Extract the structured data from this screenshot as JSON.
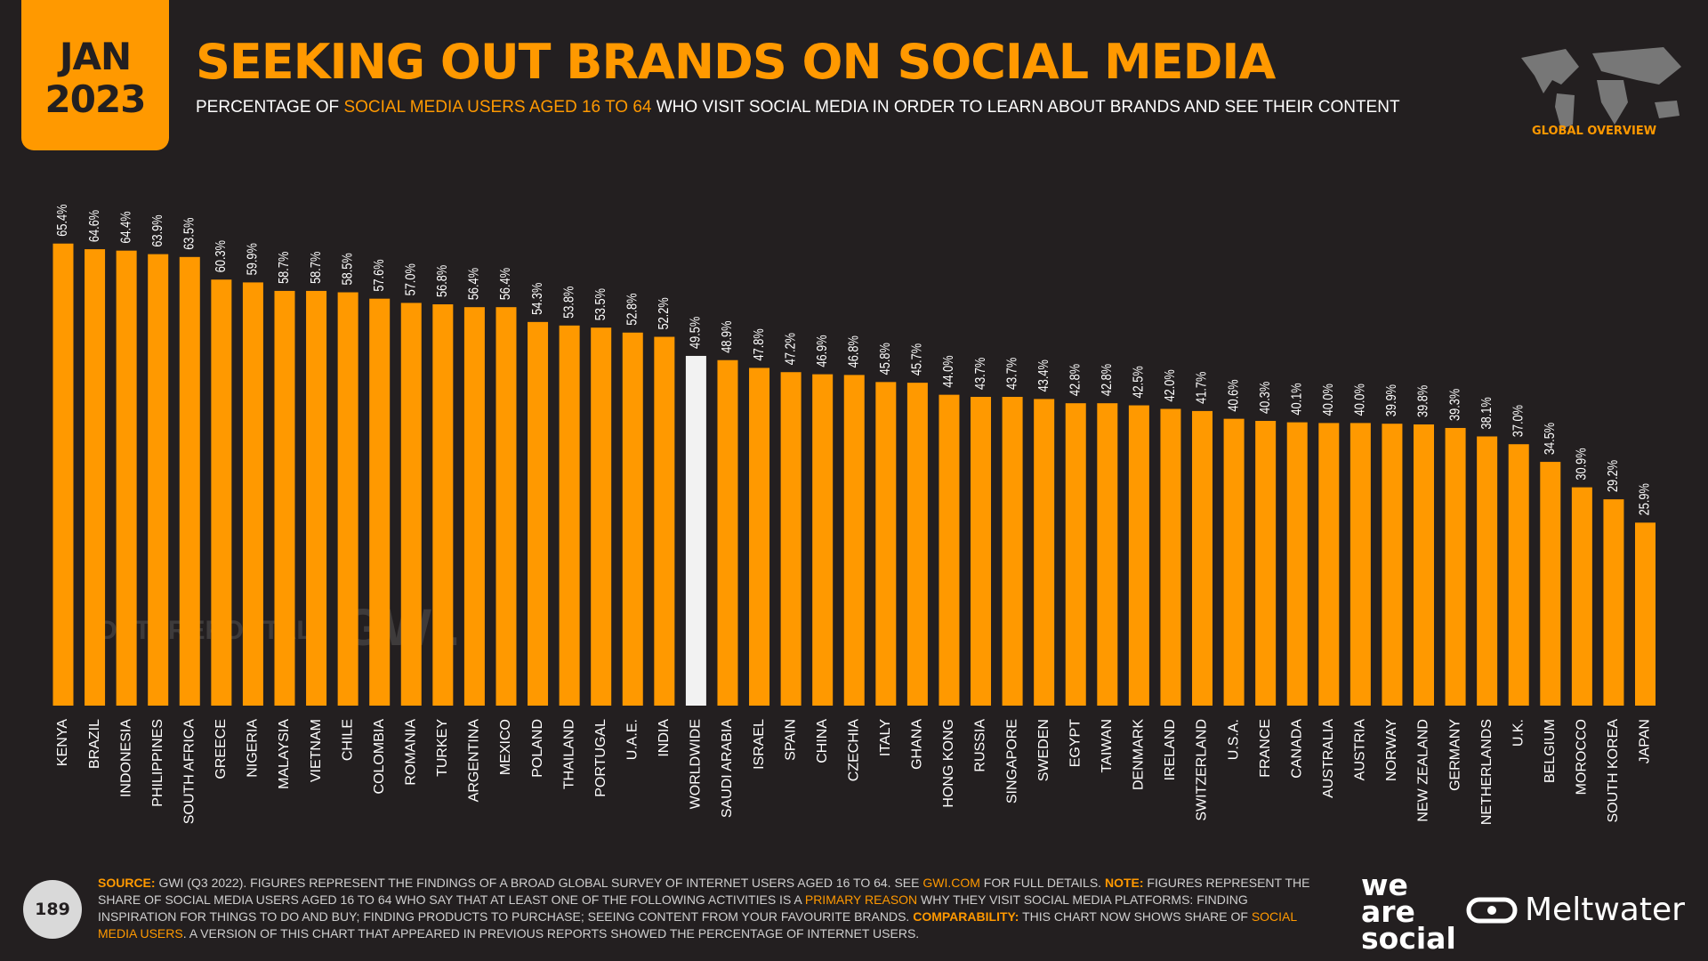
{
  "header": {
    "month": "JAN",
    "year": "2023",
    "badge": "GLOBAL OVERVIEW"
  },
  "chart_data": {
    "type": "bar",
    "title": "SEEKING OUT BRANDS ON SOCIAL MEDIA",
    "subtitle": [
      {
        "text": "PERCENTAGE OF ",
        "highlight": false
      },
      {
        "text": "SOCIAL MEDIA USERS AGED 16 TO 64",
        "highlight": true
      },
      {
        "text": " WHO VISIT SOCIAL MEDIA IN ORDER TO LEARN ABOUT BRANDS AND SEE THEIR CONTENT",
        "highlight": false
      }
    ],
    "categories": [
      "KENYA",
      "BRAZIL",
      "INDONESIA",
      "PHILIPPINES",
      "SOUTH AFRICA",
      "GREECE",
      "NIGERIA",
      "MALAYSIA",
      "VIETNAM",
      "CHILE",
      "COLOMBIA",
      "ROMANIA",
      "TURKEY",
      "ARGENTINA",
      "MEXICO",
      "POLAND",
      "THAILAND",
      "PORTUGAL",
      "U.A.E.",
      "INDIA",
      "WORLDWIDE",
      "SAUDI ARABIA",
      "ISRAEL",
      "SPAIN",
      "CHINA",
      "CZECHIA",
      "ITALY",
      "GHANA",
      "HONG KONG",
      "RUSSIA",
      "SINGAPORE",
      "SWEDEN",
      "EGYPT",
      "TAIWAN",
      "DENMARK",
      "IRELAND",
      "SWITZERLAND",
      "U.S.A.",
      "FRANCE",
      "CANADA",
      "AUSTRALIA",
      "AUSTRIA",
      "NORWAY",
      "NEW ZEALAND",
      "GERMANY",
      "NETHERLANDS",
      "U.K.",
      "BELGIUM",
      "MOROCCO",
      "SOUTH KOREA",
      "JAPAN"
    ],
    "values": [
      65.4,
      64.6,
      64.4,
      63.9,
      63.5,
      60.3,
      59.9,
      58.7,
      58.7,
      58.5,
      57.6,
      57.0,
      56.8,
      56.4,
      56.4,
      54.3,
      53.8,
      53.5,
      52.8,
      52.2,
      49.5,
      48.9,
      47.8,
      47.2,
      46.9,
      46.8,
      45.8,
      45.7,
      44.0,
      43.7,
      43.7,
      43.4,
      42.8,
      42.8,
      42.5,
      42.0,
      41.7,
      40.6,
      40.3,
      40.1,
      40.0,
      40.0,
      39.9,
      39.8,
      39.3,
      38.1,
      37.0,
      34.5,
      30.9,
      29.2,
      25.9
    ],
    "value_labels": [
      "65.4%",
      "64.6%",
      "64.4%",
      "63.9%",
      "63.5%",
      "60.3%",
      "59.9%",
      "58.7%",
      "58.7%",
      "58.5%",
      "57.6%",
      "57.0%",
      "56.8%",
      "56.4%",
      "56.4%",
      "54.3%",
      "53.8%",
      "53.5%",
      "52.8%",
      "52.2%",
      "49.5%",
      "48.9%",
      "47.8%",
      "47.2%",
      "46.9%",
      "46.8%",
      "45.8%",
      "45.7%",
      "44.0%",
      "43.7%",
      "43.7%",
      "43.4%",
      "42.8%",
      "42.8%",
      "42.5%",
      "42.0%",
      "41.7%",
      "40.6%",
      "40.3%",
      "40.1%",
      "40.0%",
      "40.0%",
      "39.9%",
      "39.8%",
      "39.3%",
      "38.1%",
      "37.0%",
      "34.5%",
      "30.9%",
      "29.2%",
      "25.9%"
    ],
    "colors": [
      "#ff9900",
      "#ff9900",
      "#ff9900",
      "#ff9900",
      "#ff9900",
      "#ff9900",
      "#ff9900",
      "#ff9900",
      "#ff9900",
      "#ff9900",
      "#ff9900",
      "#ff9900",
      "#ff9900",
      "#ff9900",
      "#ff9900",
      "#ff9900",
      "#ff9900",
      "#ff9900",
      "#ff9900",
      "#ff9900",
      "#f2f2f2",
      "#ff9900",
      "#ff9900",
      "#ff9900",
      "#ff9900",
      "#ff9900",
      "#ff9900",
      "#ff9900",
      "#ff9900",
      "#ff9900",
      "#ff9900",
      "#ff9900",
      "#ff9900",
      "#ff9900",
      "#ff9900",
      "#ff9900",
      "#ff9900",
      "#ff9900",
      "#ff9900",
      "#ff9900",
      "#ff9900",
      "#ff9900",
      "#ff9900",
      "#ff9900",
      "#ff9900",
      "#ff9900",
      "#ff9900",
      "#ff9900",
      "#ff9900",
      "#ff9900",
      "#ff9900"
    ],
    "watermarks": [
      "DATAREPORTAL",
      "GWI."
    ]
  },
  "footer": {
    "page": "189",
    "notes": [
      {
        "text": "SOURCE:",
        "kind": "label"
      },
      {
        "text": " GWI (Q3 2022). FIGURES REPRESENT THE FINDINGS OF A BROAD GLOBAL SURVEY OF INTERNET USERS AGED 16 TO 64. SEE ",
        "kind": "text"
      },
      {
        "text": "GWI.COM",
        "kind": "link"
      },
      {
        "text": " FOR FULL DETAILS. ",
        "kind": "text"
      },
      {
        "text": "NOTE:",
        "kind": "label"
      },
      {
        "text": " FIGURES REPRESENT THE SHARE OF SOCIAL MEDIA USERS AGED 16 TO 64 WHO SAY THAT AT LEAST ONE OF THE FOLLOWING ACTIVITIES IS A ",
        "kind": "text"
      },
      {
        "text": "PRIMARY REASON",
        "kind": "link"
      },
      {
        "text": " WHY THEY VISIT SOCIAL MEDIA PLATFORMS: FINDING INSPIRATION FOR THINGS TO DO AND BUY; FINDING PRODUCTS TO PURCHASE; SEEING CONTENT FROM YOUR FAVOURITE BRANDS. ",
        "kind": "text"
      },
      {
        "text": "COMPARABILITY:",
        "kind": "label"
      },
      {
        "text": " THIS CHART NOW SHOWS SHARE OF ",
        "kind": "text"
      },
      {
        "text": "SOCIAL MEDIA USERS",
        "kind": "link"
      },
      {
        "text": ". A VERSION OF THIS CHART THAT APPEARED IN PREVIOUS REPORTS SHOWED THE PERCENTAGE OF INTERNET USERS.",
        "kind": "text"
      }
    ],
    "brand": [
      "we",
      "are",
      "social"
    ],
    "partner": "Meltwater"
  }
}
